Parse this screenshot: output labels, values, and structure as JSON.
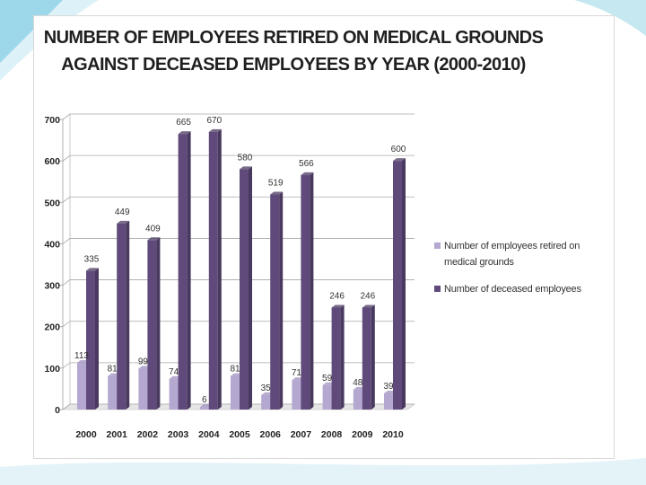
{
  "colors": {
    "retired": "#b4a7d0",
    "deceased": "#604a7b",
    "background_accent": "#4bb8d6"
  },
  "chart_data": {
    "type": "bar",
    "title_lines": [
      "NUMBER OF EMPLOYEES RETIRED ON MEDICAL GROUNDS",
      "AGAINST DECEASED EMPLOYEES BY YEAR (2000-2010)"
    ],
    "categories": [
      "2000",
      "2001",
      "2002",
      "2003",
      "2004",
      "2005",
      "2006",
      "2007",
      "2008",
      "2009",
      "2010"
    ],
    "series": [
      {
        "name": "Number of employees retired on medical grounds",
        "values": [
          113,
          81,
          99,
          74,
          6,
          81,
          35,
          71,
          59,
          48,
          39
        ]
      },
      {
        "name": "Number of deceased employees",
        "values": [
          335,
          449,
          409,
          665,
          670,
          580,
          519,
          566,
          246,
          246,
          600
        ]
      }
    ],
    "ylim": [
      0,
      700
    ],
    "yticks": [
      "0",
      "100",
      "200",
      "300",
      "400",
      "500",
      "600",
      "700"
    ],
    "grid": true,
    "legend_position": "right",
    "xlabel": "",
    "ylabel": ""
  }
}
